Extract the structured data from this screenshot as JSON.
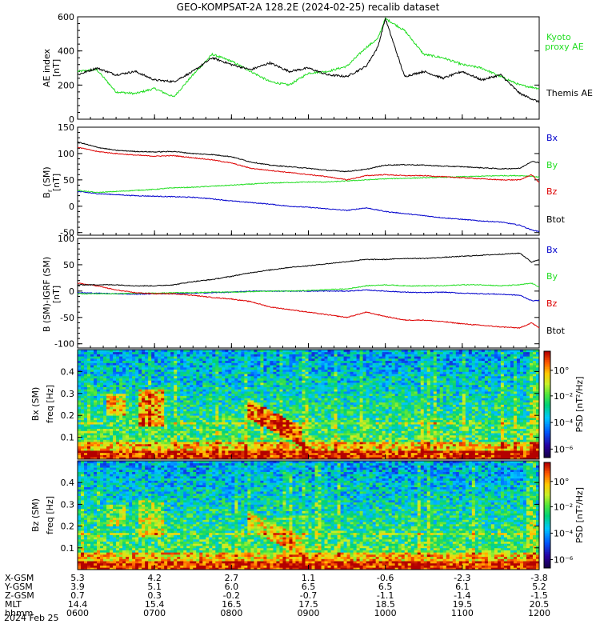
{
  "title": "GEO-KOMPSAT-2A 128.2E (2024-02-25) recalib dataset",
  "colors": {
    "black": "#000000",
    "green": "#22dd22",
    "red": "#dd0000",
    "blue": "#0000cc"
  },
  "chart_data": [
    {
      "type": "line",
      "ylabel": "AE index",
      "yunit": "[nT]",
      "ylim": [
        0,
        600
      ],
      "yticks": [
        0,
        200,
        400,
        600
      ],
      "x": [
        6.0,
        6.25,
        6.5,
        6.75,
        7.0,
        7.25,
        7.5,
        7.75,
        8.0,
        8.25,
        8.5,
        8.75,
        9.0,
        9.25,
        9.5,
        9.75,
        9.9,
        10.0,
        10.25,
        10.5,
        10.75,
        11.0,
        11.25,
        11.5,
        11.75,
        12.0
      ],
      "series": [
        {
          "name": "Kyoto proxy AE",
          "color": "#22dd22",
          "legend": "Kyoto\nproxy AE",
          "values": [
            280,
            290,
            160,
            150,
            180,
            130,
            260,
            380,
            340,
            280,
            220,
            200,
            270,
            280,
            310,
            420,
            470,
            590,
            520,
            380,
            360,
            320,
            300,
            250,
            200,
            180
          ]
        },
        {
          "name": "Themis AE",
          "color": "#000000",
          "legend": "Themis AE",
          "values": [
            260,
            300,
            260,
            280,
            230,
            220,
            280,
            360,
            320,
            290,
            330,
            280,
            300,
            260,
            250,
            310,
            420,
            590,
            250,
            280,
            240,
            280,
            230,
            260,
            150,
            100
          ]
        }
      ]
    },
    {
      "type": "line",
      "ylabel": "B (SM)",
      "ylabel_sub": "r",
      "yunit": "[nT]",
      "ylim": [
        -55,
        150
      ],
      "yticks": [
        -50,
        0,
        50,
        100,
        150
      ],
      "x": [
        6.0,
        6.25,
        6.5,
        6.75,
        7.0,
        7.25,
        7.5,
        7.75,
        8.0,
        8.25,
        8.5,
        8.75,
        9.0,
        9.25,
        9.5,
        9.75,
        10.0,
        10.25,
        10.5,
        10.75,
        11.0,
        11.25,
        11.5,
        11.75,
        11.9,
        12.0
      ],
      "series": [
        {
          "name": "Bx",
          "color": "#0000cc",
          "values": [
            28,
            24,
            22,
            20,
            19,
            18,
            17,
            14,
            10,
            7,
            4,
            0,
            -2,
            -5,
            -8,
            -3,
            -10,
            -14,
            -18,
            -22,
            -25,
            -28,
            -30,
            -36,
            -45,
            -48
          ]
        },
        {
          "name": "By",
          "color": "#22dd22",
          "values": [
            30,
            26,
            28,
            30,
            32,
            35,
            36,
            38,
            40,
            42,
            44,
            45,
            46,
            46,
            48,
            50,
            52,
            53,
            54,
            55,
            56,
            57,
            58,
            58,
            57,
            55
          ]
        },
        {
          "name": "Bz",
          "color": "#dd0000",
          "values": [
            112,
            104,
            100,
            97,
            95,
            96,
            92,
            88,
            82,
            72,
            68,
            64,
            60,
            56,
            50,
            58,
            60,
            58,
            58,
            56,
            54,
            52,
            50,
            50,
            60,
            45
          ]
        },
        {
          "name": "Btot",
          "color": "#000000",
          "values": [
            122,
            112,
            106,
            104,
            103,
            104,
            100,
            98,
            94,
            84,
            78,
            75,
            72,
            68,
            66,
            70,
            78,
            79,
            78,
            76,
            75,
            73,
            71,
            72,
            85,
            83
          ]
        }
      ]
    },
    {
      "type": "line",
      "ylabel": "B (SM)-IGRF (SM)",
      "yunit": "[nT]",
      "ylim": [
        -108,
        100
      ],
      "yticks": [
        -100,
        -50,
        0,
        50,
        100
      ],
      "x": [
        6.0,
        6.25,
        6.5,
        6.75,
        7.0,
        7.25,
        7.5,
        7.75,
        8.0,
        8.25,
        8.5,
        8.75,
        9.0,
        9.25,
        9.5,
        9.75,
        10.0,
        10.25,
        10.5,
        10.75,
        11.0,
        11.25,
        11.5,
        11.75,
        11.9,
        12.0
      ],
      "series": [
        {
          "name": "Bx",
          "color": "#0000cc",
          "values": [
            -3,
            -4,
            -5,
            -6,
            -5,
            -5,
            -4,
            -3,
            -2,
            0,
            0,
            0,
            0,
            0,
            0,
            2,
            0,
            -2,
            -3,
            -2,
            -4,
            -5,
            -6,
            -8,
            -18,
            -18
          ]
        },
        {
          "name": "By",
          "color": "#22dd22",
          "values": [
            -5,
            -5,
            -5,
            -4,
            -4,
            -3,
            -3,
            -2,
            -2,
            -1,
            0,
            0,
            1,
            3,
            4,
            10,
            12,
            10,
            10,
            10,
            12,
            12,
            10,
            12,
            15,
            8
          ]
        },
        {
          "name": "Bz",
          "color": "#dd0000",
          "values": [
            15,
            10,
            2,
            -3,
            -5,
            -5,
            -8,
            -12,
            -15,
            -20,
            -30,
            -35,
            -40,
            -45,
            -50,
            -40,
            -48,
            -55,
            -55,
            -58,
            -62,
            -65,
            -68,
            -70,
            -60,
            -70
          ]
        },
        {
          "name": "Btot",
          "color": "#000000",
          "values": [
            12,
            12,
            12,
            10,
            10,
            12,
            18,
            22,
            28,
            35,
            40,
            45,
            48,
            52,
            56,
            60,
            60,
            62,
            62,
            64,
            66,
            68,
            70,
            72,
            55,
            60
          ]
        }
      ]
    },
    {
      "type": "heatmap",
      "ylabel": "Bx (SM)",
      "ysub": "freq [Hz]",
      "ylim": [
        0,
        0.5
      ],
      "yticks": [
        0.1,
        0.2,
        0.3,
        0.4
      ],
      "colorbar": {
        "label": "PSD [nT²/Hz]",
        "ticks": [
          "10°",
          "10⁻²",
          "10⁻⁴",
          "10⁻⁶"
        ]
      }
    },
    {
      "type": "heatmap",
      "ylabel": "Bz (SM)",
      "ysub": "freq [Hz]",
      "ylim": [
        0,
        0.5
      ],
      "yticks": [
        0.1,
        0.2,
        0.3,
        0.4
      ],
      "colorbar": {
        "label": "PSD [nT²/Hz]",
        "ticks": [
          "10°",
          "10⁻²",
          "10⁻⁴",
          "10⁻⁶"
        ]
      }
    }
  ],
  "panel_legends": [
    [
      "Bx",
      "By",
      "Bz",
      "Btot"
    ],
    [
      "Bx",
      "By",
      "Bz",
      "Btot"
    ]
  ],
  "xaxis": {
    "rows": [
      {
        "label": "X-GSM",
        "values": [
          "5.3",
          "4.2",
          "2.7",
          "1.1",
          "-0.6",
          "-2.3",
          "-3.8"
        ]
      },
      {
        "label": "Y-GSM",
        "values": [
          "3.9",
          "5.1",
          "6.0",
          "6.5",
          "6.5",
          "6.1",
          "5.2"
        ]
      },
      {
        "label": "Z-GSM",
        "values": [
          "0.7",
          "0.3",
          "-0.2",
          "-0.7",
          "-1.1",
          "-1.4",
          "-1.5"
        ]
      },
      {
        "label": "MLT",
        "values": [
          "14.4",
          "15.4",
          "16.5",
          "17.5",
          "18.5",
          "19.5",
          "20.5"
        ]
      },
      {
        "label": "hhmm",
        "values": [
          "0600",
          "0700",
          "0800",
          "0900",
          "1000",
          "1100",
          "1200"
        ]
      }
    ],
    "date": "2024 Feb 25"
  }
}
